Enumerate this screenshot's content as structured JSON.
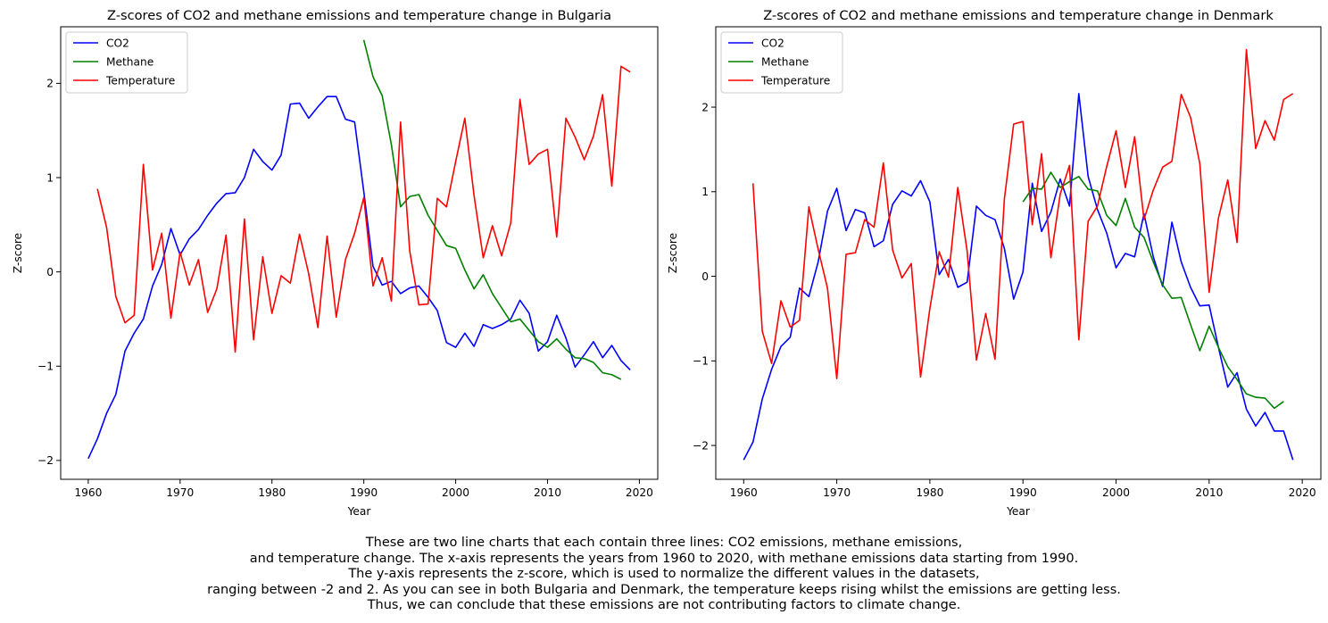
{
  "chart_data": [
    {
      "type": "line",
      "title": "Z-scores of CO2 and methane emissions and temperature change in Bulgaria",
      "xlabel": "Year",
      "ylabel": "Z-score",
      "xlim": [
        1957,
        2022
      ],
      "ylim": [
        -2.2,
        2.6
      ],
      "xticks": [
        1960,
        1970,
        1980,
        1990,
        2000,
        2010,
        2020
      ],
      "yticks": [
        -2,
        -1,
        0,
        1,
        2
      ],
      "legend": "top-left",
      "grid": false,
      "series": [
        {
          "name": "CO2",
          "color": "#0000ff",
          "x": [
            1960,
            1961,
            1962,
            1963,
            1964,
            1965,
            1966,
            1967,
            1968,
            1969,
            1970,
            1971,
            1972,
            1973,
            1974,
            1975,
            1976,
            1977,
            1978,
            1979,
            1980,
            1981,
            1982,
            1983,
            1984,
            1985,
            1986,
            1987,
            1988,
            1989,
            1990,
            1991,
            1992,
            1993,
            1994,
            1995,
            1996,
            1997,
            1998,
            1999,
            2000,
            2001,
            2002,
            2003,
            2004,
            2005,
            2006,
            2007,
            2008,
            2009,
            2010,
            2011,
            2012,
            2013,
            2014,
            2015,
            2016,
            2017,
            2018,
            2019
          ],
          "values": [
            -1.98,
            -1.77,
            -1.5,
            -1.3,
            -0.84,
            -0.65,
            -0.5,
            -0.15,
            0.08,
            0.46,
            0.18,
            0.35,
            0.45,
            0.6,
            0.73,
            0.83,
            0.84,
            1.0,
            1.3,
            1.17,
            1.08,
            1.24,
            1.78,
            1.79,
            1.63,
            1.75,
            1.86,
            1.86,
            1.62,
            1.59,
            0.85,
            0.06,
            -0.14,
            -0.1,
            -0.23,
            -0.17,
            -0.15,
            -0.27,
            -0.41,
            -0.75,
            -0.8,
            -0.65,
            -0.79,
            -0.56,
            -0.6,
            -0.56,
            -0.5,
            -0.3,
            -0.44,
            -0.84,
            -0.74,
            -0.46,
            -0.7,
            -1.01,
            -0.88,
            -0.74,
            -0.91,
            -0.78,
            -0.94,
            -1.04
          ]
        },
        {
          "name": "Methane",
          "color": "#008000",
          "x": [
            1990,
            1991,
            1992,
            1993,
            1994,
            1995,
            1996,
            1997,
            1998,
            1999,
            2000,
            2001,
            2002,
            2003,
            2004,
            2005,
            2006,
            2007,
            2008,
            2009,
            2010,
            2011,
            2012,
            2013,
            2014,
            2015,
            2016,
            2017,
            2018
          ],
          "values": [
            2.46,
            2.07,
            1.87,
            1.35,
            0.69,
            0.8,
            0.82,
            0.6,
            0.44,
            0.28,
            0.25,
            0.02,
            -0.18,
            -0.03,
            -0.23,
            -0.38,
            -0.53,
            -0.5,
            -0.62,
            -0.74,
            -0.8,
            -0.71,
            -0.82,
            -0.91,
            -0.92,
            -0.96,
            -1.07,
            -1.09,
            -1.14
          ]
        },
        {
          "name": "Temperature",
          "color": "#ff0000",
          "x": [
            1961,
            1962,
            1963,
            1964,
            1965,
            1966,
            1967,
            1968,
            1969,
            1970,
            1971,
            1972,
            1973,
            1974,
            1975,
            1976,
            1977,
            1978,
            1979,
            1980,
            1981,
            1982,
            1983,
            1984,
            1985,
            1986,
            1987,
            1988,
            1989,
            1990,
            1991,
            1992,
            1993,
            1994,
            1995,
            1996,
            1997,
            1998,
            1999,
            2000,
            2001,
            2002,
            2003,
            2004,
            2005,
            2006,
            2007,
            2008,
            2009,
            2010,
            2011,
            2012,
            2013,
            2014,
            2015,
            2016,
            2017,
            2018,
            2019
          ],
          "values": [
            0.88,
            0.47,
            -0.26,
            -0.54,
            -0.46,
            1.14,
            0.02,
            0.41,
            -0.49,
            0.21,
            -0.14,
            0.13,
            -0.43,
            -0.18,
            0.39,
            -0.85,
            0.56,
            -0.72,
            0.16,
            -0.44,
            -0.04,
            -0.12,
            0.4,
            -0.02,
            -0.59,
            0.38,
            -0.48,
            0.13,
            0.41,
            0.79,
            -0.15,
            0.15,
            -0.31,
            1.59,
            0.22,
            -0.35,
            -0.34,
            0.78,
            0.69,
            1.17,
            1.63,
            0.81,
            0.15,
            0.49,
            0.17,
            0.52,
            1.83,
            1.14,
            1.25,
            1.3,
            0.37,
            1.63,
            1.43,
            1.19,
            1.44,
            1.88,
            0.91,
            2.18,
            2.12
          ]
        }
      ]
    },
    {
      "type": "line",
      "title": "Z-scores of CO2 and methane emissions and temperature change in Denmark",
      "xlabel": "Year",
      "ylabel": "Z-score",
      "xlim": [
        1957,
        2022
      ],
      "ylim": [
        -2.4,
        2.95
      ],
      "xticks": [
        1960,
        1970,
        1980,
        1990,
        2000,
        2010,
        2020
      ],
      "yticks": [
        -2,
        -1,
        0,
        1,
        2
      ],
      "legend": "top-left",
      "grid": false,
      "series": [
        {
          "name": "CO2",
          "color": "#0000ff",
          "x": [
            1960,
            1961,
            1962,
            1963,
            1964,
            1965,
            1966,
            1967,
            1968,
            1969,
            1970,
            1971,
            1972,
            1973,
            1974,
            1975,
            1976,
            1977,
            1978,
            1979,
            1980,
            1981,
            1982,
            1983,
            1984,
            1985,
            1986,
            1987,
            1988,
            1989,
            1990,
            1991,
            1992,
            1993,
            1994,
            1995,
            1996,
            1997,
            1998,
            1999,
            2000,
            2001,
            2002,
            2003,
            2004,
            2005,
            2006,
            2007,
            2008,
            2009,
            2010,
            2011,
            2012,
            2013,
            2014,
            2015,
            2016,
            2017,
            2018,
            2019
          ],
          "values": [
            -2.17,
            -1.96,
            -1.45,
            -1.1,
            -0.83,
            -0.72,
            -0.14,
            -0.24,
            0.17,
            0.77,
            1.04,
            0.54,
            0.79,
            0.75,
            0.35,
            0.42,
            0.85,
            1.01,
            0.95,
            1.13,
            0.88,
            0.02,
            0.2,
            -0.13,
            -0.07,
            0.83,
            0.72,
            0.67,
            0.33,
            -0.27,
            0.05,
            1.1,
            0.53,
            0.76,
            1.15,
            0.83,
            2.16,
            1.18,
            0.79,
            0.51,
            0.1,
            0.27,
            0.23,
            0.74,
            0.23,
            -0.12,
            0.64,
            0.17,
            -0.13,
            -0.35,
            -0.34,
            -0.84,
            -1.31,
            -1.14,
            -1.57,
            -1.77,
            -1.61,
            -1.83,
            -1.83,
            -2.17
          ]
        },
        {
          "name": "Methane",
          "color": "#008000",
          "x": [
            1990,
            1991,
            1992,
            1993,
            1994,
            1995,
            1996,
            1997,
            1998,
            1999,
            2000,
            2001,
            2002,
            2003,
            2004,
            2005,
            2006,
            2007,
            2008,
            2009,
            2010,
            2011,
            2012,
            2013,
            2014,
            2015,
            2016,
            2017,
            2018
          ],
          "values": [
            0.88,
            1.04,
            1.03,
            1.23,
            1.05,
            1.12,
            1.18,
            1.03,
            1.01,
            0.72,
            0.6,
            0.92,
            0.58,
            0.46,
            0.17,
            -0.1,
            -0.26,
            -0.25,
            -0.57,
            -0.88,
            -0.59,
            -0.84,
            -1.07,
            -1.22,
            -1.39,
            -1.43,
            -1.44,
            -1.56,
            -1.48
          ]
        },
        {
          "name": "Temperature",
          "color": "#ff0000",
          "x": [
            1961,
            1962,
            1963,
            1964,
            1965,
            1966,
            1967,
            1968,
            1969,
            1970,
            1971,
            1972,
            1973,
            1974,
            1975,
            1976,
            1977,
            1978,
            1979,
            1980,
            1981,
            1982,
            1983,
            1984,
            1985,
            1986,
            1987,
            1988,
            1989,
            1990,
            1991,
            1992,
            1993,
            1994,
            1995,
            1996,
            1997,
            1998,
            1999,
            2000,
            2001,
            2002,
            2003,
            2004,
            2005,
            2006,
            2007,
            2008,
            2009,
            2010,
            2011,
            2012,
            2013,
            2014,
            2015,
            2016,
            2017,
            2018,
            2019
          ],
          "values": [
            1.1,
            -0.65,
            -1.03,
            -0.29,
            -0.6,
            -0.52,
            0.82,
            0.32,
            -0.14,
            -1.21,
            0.26,
            0.28,
            0.67,
            0.58,
            1.34,
            0.31,
            -0.02,
            0.15,
            -1.19,
            -0.38,
            0.29,
            -0.01,
            1.05,
            0.3,
            -0.99,
            -0.44,
            -0.98,
            0.91,
            1.8,
            1.83,
            0.61,
            1.45,
            0.22,
            0.97,
            1.31,
            -0.75,
            0.65,
            0.83,
            1.3,
            1.72,
            1.05,
            1.65,
            0.67,
            1.02,
            1.29,
            1.36,
            2.15,
            1.88,
            1.33,
            -0.19,
            0.69,
            1.14,
            0.4,
            2.68,
            1.51,
            1.84,
            1.61,
            2.09,
            2.16
          ]
        }
      ]
    }
  ],
  "caption": [
    "These are two line charts that each contain three lines: CO2 emissions, methane emissions,",
    "and temperature change. The x-axis represents the years from 1960 to 2020, with methane emissions data starting from 1990.",
    "The y-axis represents the z-score, which is used to normalize the different values in the datasets,",
    "ranging between -2 and 2. As you can see in both Bulgaria and Denmark, the temperature keeps rising whilst the emissions are getting less.",
    "Thus, we can conclude that these emissions are not contributing factors to climate change."
  ]
}
